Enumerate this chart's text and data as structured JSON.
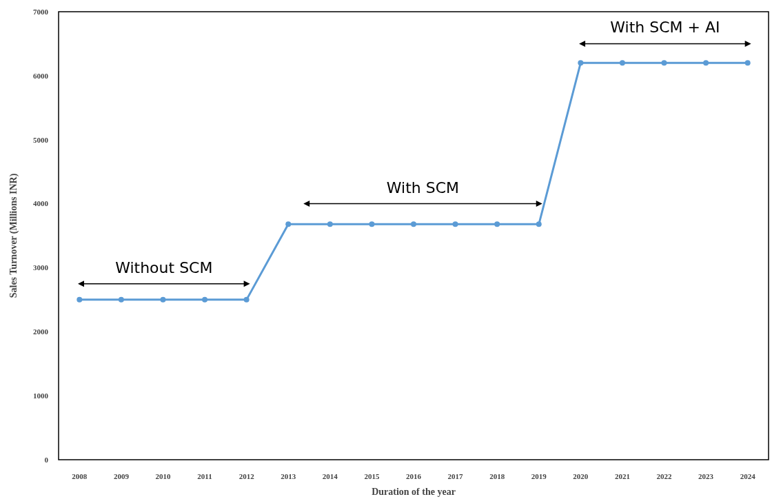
{
  "chart_data": {
    "type": "line",
    "xlabel": "Duration of the year",
    "ylabel": "Sales Turnover (Millions INR)",
    "categories": [
      "2008",
      "2009",
      "2010",
      "2011",
      "2012",
      "2013",
      "2014",
      "2015",
      "2016",
      "2017",
      "2018",
      "2019",
      "2020",
      "2021",
      "2022",
      "2023",
      "2024"
    ],
    "series": [
      {
        "color": "#5b9bd5",
        "values": [
          2500,
          2500,
          2500,
          2500,
          2500,
          3680,
          3680,
          3680,
          3680,
          3680,
          3680,
          3680,
          6200,
          6200,
          6200,
          6200,
          6200
        ]
      }
    ],
    "ylim": [
      0,
      7000
    ],
    "yticks": [
      0,
      1000,
      2000,
      3000,
      4000,
      5000,
      6000,
      7000
    ],
    "grid": false,
    "marker": "circle",
    "line_style": "solid",
    "annotations": [
      "Without SCM",
      "With SCM",
      "With SCM + AI"
    ]
  }
}
